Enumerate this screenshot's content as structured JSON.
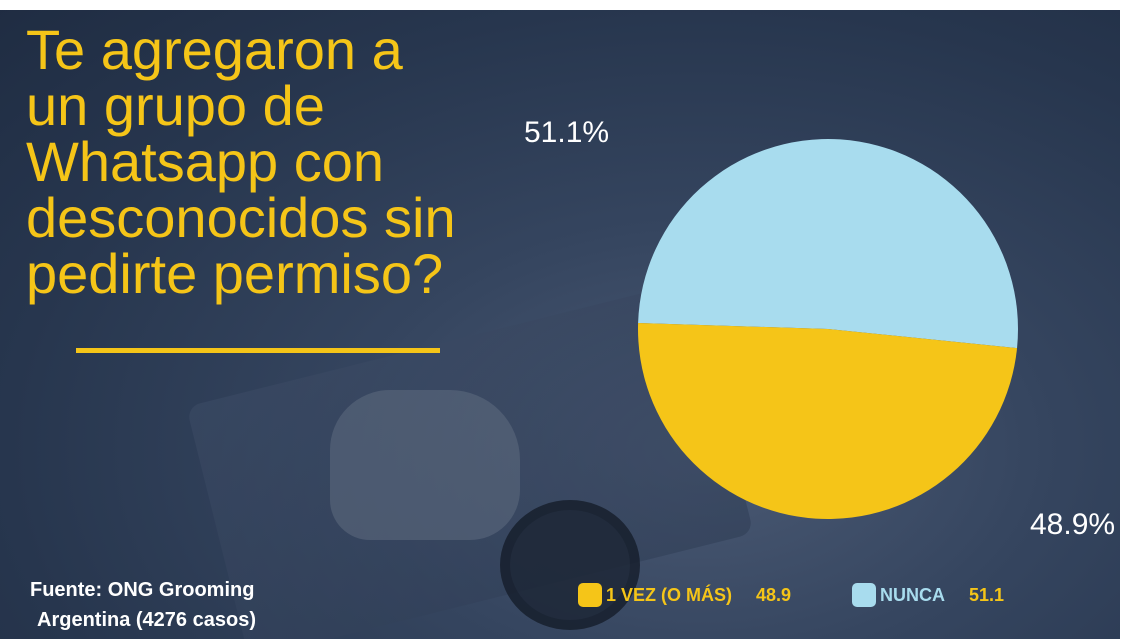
{
  "title": "Te agregaron a\nun grupo de\nWhatsapp con\ndesconocidos sin\npedirte permiso?",
  "source": {
    "line1": "Fuente: ONG Grooming",
    "line2": "Argentina (4276 casos)"
  },
  "colors": {
    "yellow": "#f5c518",
    "light_blue": "#a8dcee"
  },
  "chart_data": {
    "type": "pie",
    "title": "Te agregaron a un grupo de Whatsapp con desconocidos sin pedirte permiso?",
    "slices": [
      {
        "label": "NUNCA",
        "value": 51.1,
        "color": "#a8dcee",
        "data_label": "51.1%"
      },
      {
        "label": "1 VEZ (O MÁS)",
        "value": 48.9,
        "color": "#f5c518",
        "data_label": "48.9%"
      }
    ],
    "legend": [
      {
        "label": "1 VEZ (O MÁS)",
        "value": "48.9",
        "color": "#f5c518"
      },
      {
        "label": "NUNCA",
        "value": "51.1",
        "color": "#a8dcee"
      }
    ],
    "legend_position": "bottom"
  }
}
